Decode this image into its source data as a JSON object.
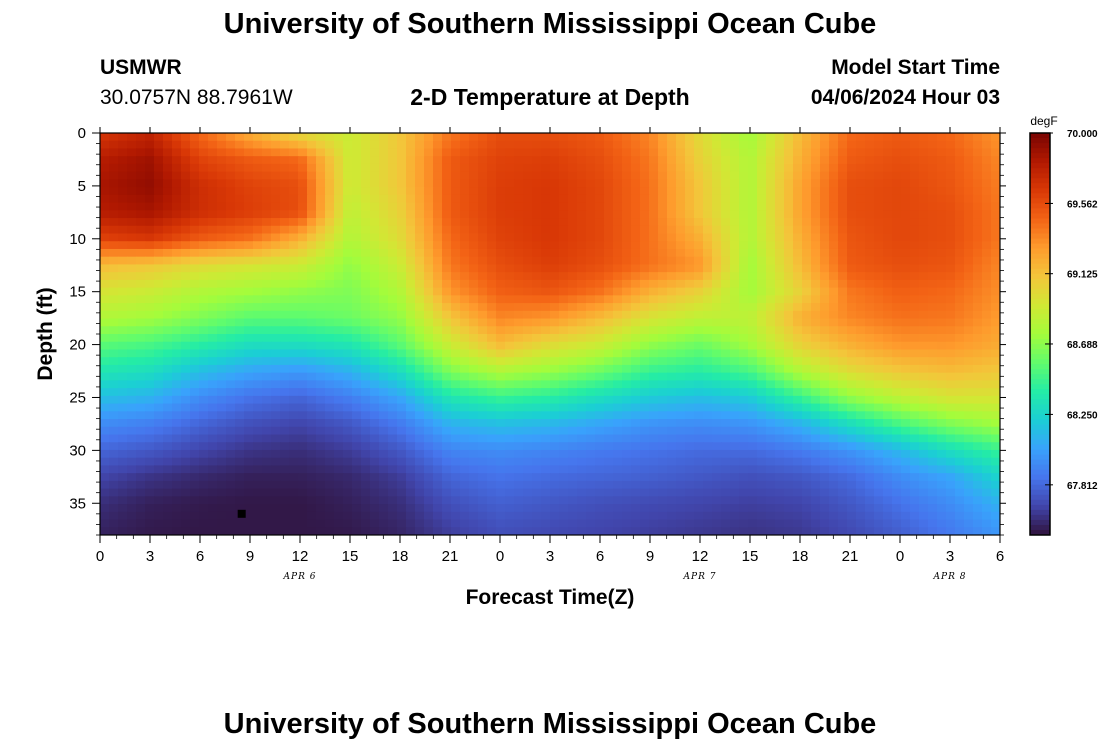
{
  "header": {
    "title": "University of Southern Mississippi Ocean Cube",
    "station_id": "USMWR",
    "coordinates": "30.0757N  88.7961W",
    "subtitle": "2-D Temperature at Depth",
    "model_start_label": "Model Start Time",
    "model_start_value": "04/06/2024 Hour 03"
  },
  "footer": {
    "title": "University of Southern Mississippi Ocean Cube"
  },
  "chart_data": {
    "type": "heatmap",
    "title": "2-D Temperature at Depth",
    "xlabel": "Forecast Time(Z)",
    "ylabel": "Depth (ft)",
    "x_tick_labels": [
      "0",
      "3",
      "6",
      "9",
      "12",
      "15",
      "18",
      "21",
      "0",
      "3",
      "6",
      "9",
      "12",
      "15",
      "18",
      "21",
      "0",
      "3",
      "6"
    ],
    "x_hours": [
      0,
      3,
      6,
      9,
      12,
      15,
      18,
      21,
      24,
      27,
      30,
      33,
      36,
      39,
      42,
      45,
      48,
      51,
      54
    ],
    "xlim": [
      0,
      54
    ],
    "date_labels": [
      {
        "text": "APR 6",
        "hour": 12
      },
      {
        "text": "APR 7",
        "hour": 36
      },
      {
        "text": "APR 8",
        "hour": 51
      }
    ],
    "y_tick_labels": [
      "0",
      "5",
      "10",
      "15",
      "20",
      "25",
      "30",
      "35"
    ],
    "y_ticks": [
      0,
      5,
      10,
      15,
      20,
      25,
      30,
      35
    ],
    "ylim": [
      0,
      38
    ],
    "y_inverted": true,
    "colorbar": {
      "unit": "degF",
      "min": 67.5,
      "max": 70.0,
      "tick_values": [
        70.0,
        69.562,
        69.125,
        68.688,
        68.25,
        67.812
      ],
      "tick_labels": [
        "70.000",
        "69.562",
        "69.125",
        "68.688",
        "68.250",
        "67.812"
      ],
      "colormap": [
        "#30123b",
        "#4145ab",
        "#4675ed",
        "#39a2fc",
        "#1bcfd4",
        "#24eca6",
        "#61fc6c",
        "#a4fc3b",
        "#d1e834",
        "#f3c63a",
        "#fe9b2d",
        "#f36315",
        "#d93806",
        "#b11901",
        "#7a0402"
      ]
    },
    "x_hours_grid": [
      0,
      3,
      6,
      9,
      12,
      15,
      18,
      21,
      24,
      27,
      30,
      33,
      36,
      39,
      42,
      45,
      48,
      51,
      54
    ],
    "depths_grid": [
      0,
      2.5,
      5,
      7.5,
      10,
      12.5,
      15,
      17.5,
      20,
      22.5,
      25,
      27.5,
      30,
      32.5,
      35,
      37.5
    ],
    "temperature": [
      [
        69.65,
        69.75,
        69.45,
        69.2,
        69.0,
        68.9,
        69.1,
        69.4,
        69.55,
        69.55,
        69.5,
        69.35,
        69.0,
        68.75,
        69.15,
        69.45,
        69.5,
        69.45,
        69.3
      ],
      [
        69.8,
        69.88,
        69.6,
        69.5,
        69.45,
        68.9,
        69.1,
        69.5,
        69.6,
        69.62,
        69.55,
        69.4,
        69.05,
        68.8,
        69.2,
        69.5,
        69.55,
        69.5,
        69.35
      ],
      [
        69.85,
        69.92,
        69.7,
        69.6,
        69.55,
        68.9,
        69.1,
        69.5,
        69.62,
        69.65,
        69.58,
        69.42,
        69.1,
        68.8,
        69.25,
        69.55,
        69.58,
        69.52,
        69.38
      ],
      [
        69.8,
        69.85,
        69.7,
        69.62,
        69.55,
        68.85,
        69.05,
        69.5,
        69.62,
        69.65,
        69.58,
        69.42,
        69.1,
        68.8,
        69.25,
        69.55,
        69.58,
        69.55,
        69.4
      ],
      [
        69.6,
        69.65,
        69.5,
        69.42,
        69.2,
        68.8,
        69.0,
        69.45,
        69.6,
        69.65,
        69.58,
        69.42,
        69.2,
        68.8,
        69.2,
        69.52,
        69.58,
        69.55,
        69.4
      ],
      [
        69.15,
        69.1,
        69.0,
        68.95,
        68.9,
        68.7,
        68.9,
        69.4,
        69.55,
        69.62,
        69.55,
        69.42,
        69.3,
        68.75,
        69.15,
        69.5,
        69.55,
        69.52,
        69.35
      ],
      [
        68.95,
        68.9,
        68.8,
        68.75,
        68.7,
        68.65,
        68.8,
        69.3,
        69.48,
        69.52,
        69.42,
        69.2,
        69.05,
        68.75,
        69.05,
        69.4,
        69.48,
        69.45,
        69.32
      ],
      [
        68.8,
        68.75,
        68.65,
        68.55,
        68.55,
        68.6,
        68.7,
        69.1,
        69.35,
        69.3,
        69.15,
        68.95,
        68.85,
        68.85,
        69.2,
        69.35,
        69.42,
        69.4,
        69.28
      ],
      [
        68.55,
        68.5,
        68.4,
        68.3,
        68.3,
        68.35,
        68.55,
        68.9,
        69.15,
        69.0,
        68.9,
        68.7,
        68.6,
        68.75,
        69.05,
        69.2,
        69.3,
        69.3,
        69.22
      ],
      [
        68.35,
        68.3,
        68.15,
        68.05,
        68.0,
        68.1,
        68.3,
        68.65,
        68.8,
        68.72,
        68.6,
        68.45,
        68.4,
        68.5,
        68.8,
        69.0,
        69.1,
        69.15,
        69.1
      ],
      [
        68.15,
        68.1,
        67.95,
        67.85,
        67.8,
        67.9,
        68.05,
        68.35,
        68.45,
        68.4,
        68.3,
        68.2,
        68.15,
        68.2,
        68.45,
        68.7,
        68.85,
        68.95,
        68.95
      ],
      [
        67.95,
        67.9,
        67.8,
        67.72,
        67.68,
        67.75,
        67.88,
        68.1,
        68.15,
        68.12,
        68.05,
        67.98,
        67.95,
        67.98,
        68.1,
        68.3,
        68.5,
        68.65,
        68.75
      ],
      [
        67.8,
        67.75,
        67.68,
        67.62,
        67.6,
        67.65,
        67.75,
        67.92,
        67.95,
        67.92,
        67.88,
        67.85,
        67.82,
        67.82,
        67.88,
        67.98,
        68.12,
        68.3,
        68.45
      ],
      [
        67.68,
        67.62,
        67.58,
        67.55,
        67.55,
        67.58,
        67.65,
        67.8,
        67.85,
        67.82,
        67.8,
        67.78,
        67.75,
        67.72,
        67.75,
        67.82,
        67.95,
        68.05,
        68.25
      ],
      [
        67.6,
        67.55,
        67.53,
        67.52,
        67.52,
        67.55,
        67.6,
        67.72,
        67.78,
        67.75,
        67.72,
        67.7,
        67.68,
        67.66,
        67.68,
        67.75,
        67.85,
        67.95,
        68.1
      ],
      [
        67.56,
        67.53,
        67.52,
        67.52,
        67.52,
        67.53,
        67.57,
        67.66,
        67.72,
        67.7,
        67.68,
        67.66,
        67.64,
        67.62,
        67.64,
        67.7,
        67.78,
        67.88,
        68.0
      ]
    ],
    "marker": {
      "hour": 8.5,
      "depth": 36
    }
  }
}
